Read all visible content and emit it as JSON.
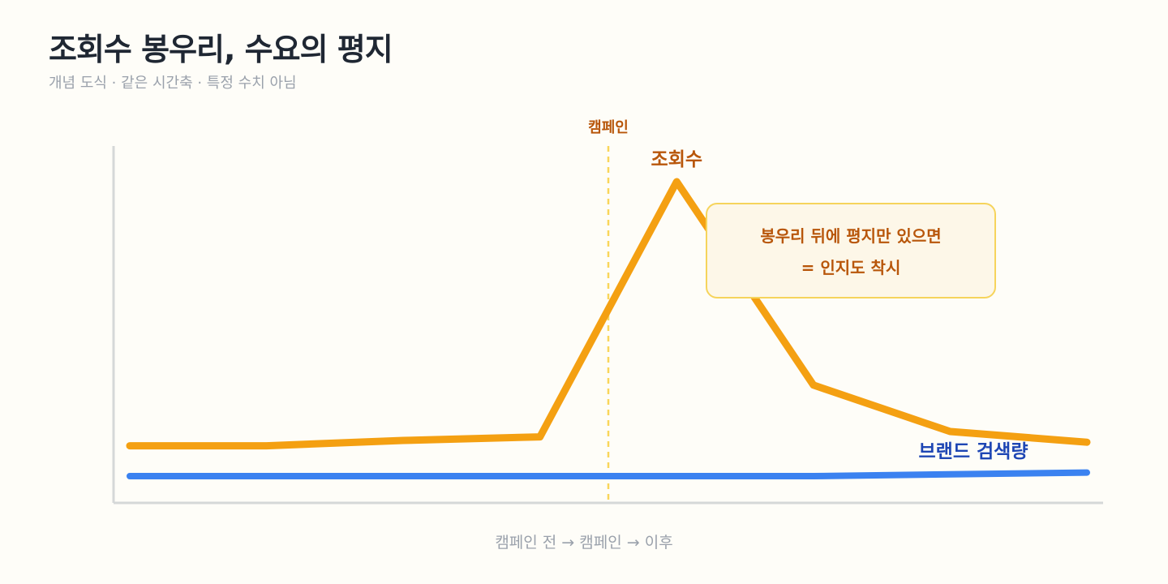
{
  "header": {
    "title": "조회수 봉우리, 수요의 평지",
    "subtitle": "개념 도식 · 같은 시간축 · 특정 수치 아님"
  },
  "callout": {
    "line1": "봉우리 뒤에 평지만 있으면",
    "line2": "= 인지도 착시"
  },
  "colors": {
    "views": "#f4a012",
    "search": "#3b82f0",
    "marker": "#f9d65a",
    "axis": "#d5d8d8",
    "views_label": "#b8560a",
    "search_label": "#1e46b4"
  },
  "chart_data": {
    "type": "line",
    "conceptual": true,
    "x": [
      0,
      1,
      2,
      3,
      4,
      5,
      6,
      7
    ],
    "xlabel": "캠페인 전 → 캠페인 → 이후",
    "ylabel": "",
    "ylim": [
      0,
      100
    ],
    "xlim": [
      0,
      7
    ],
    "grid": false,
    "series": [
      {
        "name": "조회수",
        "values": [
          16,
          16,
          17.5,
          18.5,
          90,
          33,
          20,
          17
        ]
      },
      {
        "name": "브랜드 검색량",
        "values": [
          7.5,
          7.5,
          7.5,
          7.5,
          7.5,
          7.5,
          8,
          8.5
        ]
      }
    ],
    "marker": {
      "x": 3.5,
      "label": "캠페인"
    }
  }
}
